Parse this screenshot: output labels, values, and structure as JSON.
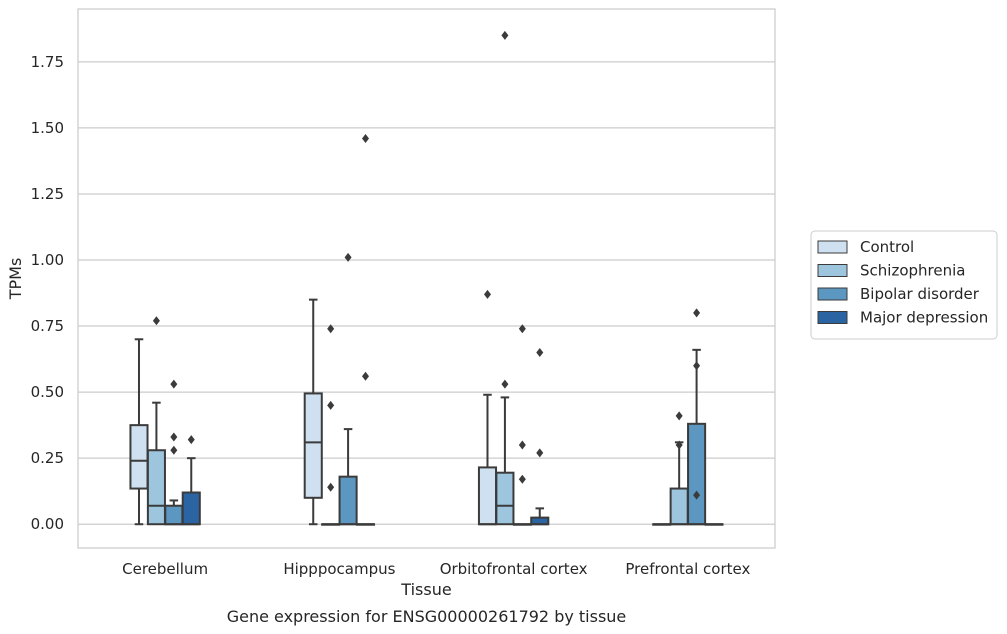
{
  "chart_data": {
    "type": "box",
    "caption": "Gene expression for ENSG00000261792 by tissue",
    "xlabel": "Tissue",
    "ylabel": "TPMs",
    "ylim": [
      -0.09,
      1.95
    ],
    "yticks": [
      0.0,
      0.25,
      0.5,
      0.75,
      1.0,
      1.25,
      1.5,
      1.75
    ],
    "ytick_labels": [
      "0.00",
      "0.25",
      "0.50",
      "0.75",
      "1.00",
      "1.25",
      "1.50",
      "1.75"
    ],
    "grid": "horizontal",
    "legend_position": "right",
    "categories": [
      "Cerebellum",
      "Hipppocampus",
      "Orbitofrontal cortex",
      "Prefrontal cortex"
    ],
    "series": [
      {
        "name": "Control",
        "color": "#cfe0f0",
        "boxes": [
          {
            "whislo": 0.0,
            "q1": 0.135,
            "med": 0.24,
            "q3": 0.375,
            "whishi": 0.7,
            "fliers": []
          },
          {
            "whislo": 0.0,
            "q1": 0.1,
            "med": 0.31,
            "q3": 0.495,
            "whishi": 0.85,
            "fliers": []
          },
          {
            "whislo": 0.0,
            "q1": 0.0,
            "med": 0.0,
            "q3": 0.215,
            "whishi": 0.49,
            "fliers": [
              0.87
            ]
          },
          {
            "whislo": 0.0,
            "q1": 0.0,
            "med": 0.0,
            "q3": 0.0,
            "whishi": 0.0,
            "fliers": []
          }
        ]
      },
      {
        "name": "Schizophrenia",
        "color": "#9dc6de",
        "boxes": [
          {
            "whislo": 0.0,
            "q1": 0.0,
            "med": 0.07,
            "q3": 0.28,
            "whishi": 0.46,
            "fliers": [
              0.77
            ]
          },
          {
            "whislo": 0.0,
            "q1": 0.0,
            "med": 0.0,
            "q3": 0.0,
            "whishi": 0.0,
            "fliers": [
              0.74,
              0.45,
              0.14
            ]
          },
          {
            "whislo": 0.0,
            "q1": 0.0,
            "med": 0.07,
            "q3": 0.195,
            "whishi": 0.48,
            "fliers": [
              1.85,
              0.53
            ]
          },
          {
            "whislo": 0.0,
            "q1": 0.0,
            "med": 0.0,
            "q3": 0.135,
            "whishi": 0.31,
            "fliers": [
              0.3,
              0.41
            ]
          }
        ]
      },
      {
        "name": "Bipolar disorder",
        "color": "#5b97c0",
        "boxes": [
          {
            "whislo": 0.0,
            "q1": 0.0,
            "med": 0.0,
            "q3": 0.07,
            "whishi": 0.09,
            "fliers": [
              0.53,
              0.33,
              0.28
            ]
          },
          {
            "whislo": 0.0,
            "q1": 0.0,
            "med": 0.0,
            "q3": 0.18,
            "whishi": 0.36,
            "fliers": [
              1.01
            ]
          },
          {
            "whislo": 0.0,
            "q1": 0.0,
            "med": 0.0,
            "q3": 0.0,
            "whishi": 0.0,
            "fliers": [
              0.74,
              0.3,
              0.17
            ]
          },
          {
            "whislo": 0.0,
            "q1": 0.0,
            "med": 0.0,
            "q3": 0.38,
            "whishi": 0.66,
            "fliers": [
              0.8,
              0.6,
              0.11
            ]
          }
        ]
      },
      {
        "name": "Major depression",
        "color": "#2a64a3",
        "boxes": [
          {
            "whislo": 0.0,
            "q1": 0.0,
            "med": 0.0,
            "q3": 0.12,
            "whishi": 0.25,
            "fliers": [
              0.32
            ]
          },
          {
            "whislo": 0.0,
            "q1": 0.0,
            "med": 0.0,
            "q3": 0.0,
            "whishi": 0.0,
            "fliers": [
              1.46,
              0.56
            ]
          },
          {
            "whislo": 0.0,
            "q1": 0.0,
            "med": 0.0,
            "q3": 0.025,
            "whishi": 0.06,
            "fliers": [
              0.65,
              0.27
            ]
          },
          {
            "whislo": 0.0,
            "q1": 0.0,
            "med": 0.0,
            "q3": 0.0,
            "whishi": 0.0,
            "fliers": []
          }
        ]
      }
    ]
  }
}
